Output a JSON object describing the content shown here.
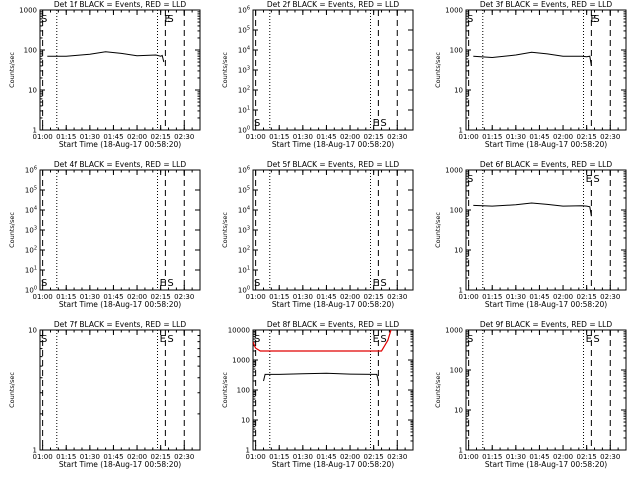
{
  "figure": {
    "title_suffix": "BLACK = Events, RED = LLD",
    "xlabel": "Start Time (18-Aug-17 00:58:20)",
    "ylabel": "Counts/sec",
    "x_ticks": [
      "01:00",
      "01:15",
      "01:30",
      "01:45",
      "02:00",
      "02:15",
      "02:30"
    ]
  },
  "colors": {
    "events": "#000000",
    "lld": "#e00000",
    "axes": "#000000"
  },
  "chart_data": [
    {
      "type": "line",
      "panel": 1,
      "title": "Det 1f BLACK = Events, RED = LLD",
      "xlabel": "Start Time (18-Aug-17 00:58:20)",
      "ylabel": "Counts/sec",
      "yscale": "log",
      "ylim": [
        1,
        1000
      ],
      "xlim": [
        "00:58:20",
        "02:40"
      ],
      "y_tick_labels": [
        "1",
        "10",
        "100",
        "1000"
      ],
      "markers": {
        "S": "01:00",
        "E": "02:18",
        "dotted": [
          "01:09",
          "02:13"
        ],
        "dashed": [
          "01:00",
          "02:18",
          "02:30"
        ]
      },
      "series": [
        {
          "color": "#000000",
          "x": [
            "01:03",
            "01:15",
            "01:30",
            "01:40",
            "01:50",
            "02:00",
            "02:12",
            "02:15",
            "02:16",
            "02:17"
          ],
          "y": [
            70,
            70,
            78,
            90,
            82,
            72,
            75,
            70,
            73,
            50
          ]
        }
      ]
    },
    {
      "type": "line",
      "panel": 2,
      "title": "Det 2f BLACK = Events, RED = LLD",
      "xlabel": "Start Time (18-Aug-17 00:58:20)",
      "ylabel": "Counts/sec",
      "yscale": "log",
      "ylim": [
        1,
        1000000
      ],
      "xlim": [
        "00:58:20",
        "02:40"
      ],
      "y_tick_labels": [
        "10^0",
        "10^1",
        "10^2",
        "10^3",
        "10^4",
        "10^5",
        "10^6"
      ],
      "markers": {
        "S": "01:00",
        "E": "02:15",
        "dotted": [
          "01:09",
          "02:13"
        ],
        "dashed": [
          "01:00",
          "02:18",
          "02:30"
        ]
      },
      "series": []
    },
    {
      "type": "line",
      "panel": 3,
      "title": "Det 3f BLACK = Events, RED = LLD",
      "xlabel": "Start Time (18-Aug-17 00:58:20)",
      "ylabel": "Counts/sec",
      "yscale": "log",
      "ylim": [
        1,
        1000
      ],
      "xlim": [
        "00:58:20",
        "02:40"
      ],
      "y_tick_labels": [
        "1",
        "10",
        "100",
        "1000"
      ],
      "markers": {
        "S": "01:00",
        "E": "02:18",
        "dotted": [
          "01:09",
          "02:13"
        ],
        "dashed": [
          "01:00",
          "02:18",
          "02:30"
        ]
      },
      "series": [
        {
          "color": "#000000",
          "x": [
            "01:03",
            "01:15",
            "01:30",
            "01:40",
            "01:50",
            "02:00",
            "02:12",
            "02:15",
            "02:17",
            "02:18"
          ],
          "y": [
            70,
            65,
            75,
            88,
            80,
            70,
            70,
            68,
            70,
            40
          ]
        }
      ]
    },
    {
      "type": "line",
      "panel": 4,
      "title": "Det 4f BLACK = Events, RED = LLD",
      "xlabel": "Start Time (18-Aug-17 00:58:20)",
      "ylabel": "Counts/sec",
      "yscale": "log",
      "ylim": [
        1,
        1000000
      ],
      "xlim": [
        "00:58:20",
        "02:40"
      ],
      "y_tick_labels": [
        "10^0",
        "10^1",
        "10^2",
        "10^3",
        "10^4",
        "10^5",
        "10^6"
      ],
      "markers": {
        "S": "00:59",
        "E": "02:15",
        "dotted": [
          "01:09",
          "02:13"
        ],
        "dashed": [
          "01:00",
          "02:18",
          "02:30"
        ]
      },
      "series": []
    },
    {
      "type": "line",
      "panel": 5,
      "title": "Det 5f BLACK = Events, RED = LLD",
      "xlabel": "Start Time (18-Aug-17 00:58:20)",
      "ylabel": "Counts/sec",
      "yscale": "log",
      "ylim": [
        1,
        1000000
      ],
      "xlim": [
        "00:58:20",
        "02:40"
      ],
      "y_tick_labels": [
        "10^0",
        "10^1",
        "10^2",
        "10^3",
        "10^4",
        "10^5",
        "10^6"
      ],
      "markers": {
        "S": "02:18",
        "E": "02:15",
        "dotted": [
          "01:09",
          "02:13"
        ],
        "dashed": [
          "01:00",
          "02:18",
          "02:30"
        ]
      },
      "series": []
    },
    {
      "type": "line",
      "panel": 6,
      "title": "Det 6f BLACK = Events, RED = LLD",
      "xlabel": "Start Time (18-Aug-17 00:58:20)",
      "ylabel": "Counts/sec",
      "yscale": "log",
      "ylim": [
        1,
        1000
      ],
      "xlim": [
        "00:58:20",
        "02:40"
      ],
      "y_tick_labels": [
        "1",
        "10",
        "100",
        "1000"
      ],
      "markers": {
        "S": "02:18",
        "E": "02:15",
        "dotted": [
          "01:09",
          "02:13"
        ],
        "dashed": [
          "01:00",
          "02:18",
          "02:30"
        ]
      },
      "series": [
        {
          "color": "#000000",
          "x": [
            "01:03",
            "01:15",
            "01:30",
            "01:40",
            "01:50",
            "02:00",
            "02:12",
            "02:15",
            "02:17",
            "02:18"
          ],
          "y": [
            130,
            125,
            135,
            150,
            138,
            125,
            128,
            125,
            120,
            70
          ]
        }
      ]
    },
    {
      "type": "line",
      "panel": 7,
      "title": "Det 7f BLACK = Events, RED = LLD",
      "xlabel": "Start Time (18-Aug-17 00:58:20)",
      "ylabel": "Counts/sec",
      "yscale": "log",
      "ylim": [
        1,
        10
      ],
      "xlim": [
        "00:58:20",
        "02:40"
      ],
      "y_tick_labels": [
        "1",
        "10"
      ],
      "markers": {
        "S": "01:00",
        "E": "02:15",
        "dotted": [
          "01:09",
          "02:13"
        ],
        "dashed": [
          "01:00",
          "02:18",
          "02:30"
        ]
      },
      "series": []
    },
    {
      "type": "line",
      "panel": 8,
      "title": "Det 8f BLACK = Events, RED = LLD",
      "xlabel": "Start Time (18-Aug-17 00:58:20)",
      "ylabel": "Counts/sec",
      "yscale": "log",
      "ylim": [
        1,
        10000
      ],
      "xlim": [
        "00:58:20",
        "02:40"
      ],
      "y_tick_labels": [
        "1",
        "10",
        "100",
        "1000",
        "10000"
      ],
      "markers": {
        "S": "00:59",
        "E": "02:15",
        "dotted": [
          "01:09",
          "02:13"
        ],
        "dashed": [
          "01:00",
          "02:18",
          "02:30"
        ]
      },
      "series": [
        {
          "color": "#e00000",
          "x": [
            "00:58:20",
            "01:00",
            "01:03",
            "02:20",
            "02:24",
            "02:26"
          ],
          "y": [
            4000,
            2500,
            2000,
            2000,
            4500,
            10000
          ]
        },
        {
          "color": "#000000",
          "x": [
            "01:05",
            "01:06",
            "01:15",
            "01:30",
            "01:45",
            "02:00",
            "02:15",
            "02:17",
            "02:18"
          ],
          "y": [
            200,
            330,
            330,
            350,
            360,
            340,
            330,
            330,
            200
          ]
        }
      ]
    },
    {
      "type": "line",
      "panel": 9,
      "title": "Det 9f BLACK = Events, RED = LLD",
      "xlabel": "Start Time (18-Aug-17 00:58:20)",
      "ylabel": "Counts/sec",
      "yscale": "log",
      "ylim": [
        1,
        1000
      ],
      "xlim": [
        "00:58:20",
        "02:40"
      ],
      "y_tick_labels": [
        "1",
        "10",
        "100",
        "1000"
      ],
      "markers": {
        "S": "01:00",
        "E": "02:15",
        "dotted": [
          "01:09",
          "02:13"
        ],
        "dashed": [
          "01:00",
          "02:18",
          "02:30"
        ]
      },
      "series": []
    }
  ]
}
